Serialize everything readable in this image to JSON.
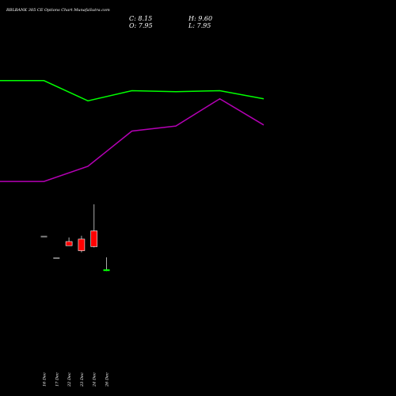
{
  "chart_data": {
    "type": "candlestick",
    "title": "RBLBANK 385 CE Options  Chart MunafaSutra.com",
    "ohlc_labels": {
      "close": "C: 8.15",
      "high": "H: 9.60",
      "open": "O: 7.95",
      "low": "L: 7.95"
    },
    "x": [
      "16 Dec",
      "17 Dec",
      "22 Dec",
      "23 Dec",
      "24 Dec",
      "26 Dec"
    ],
    "candles": [
      {
        "date": "16 Dec",
        "open": 12.2,
        "high": 12.2,
        "low": 12.2,
        "close": 12.2
      },
      {
        "date": "17 Dec",
        "open": 9.6,
        "high": 9.6,
        "low": 9.6,
        "close": 9.6
      },
      {
        "date": "22 Dec",
        "open": 11.5,
        "high": 12.0,
        "low": 11.0,
        "close": 11.0
      },
      {
        "date": "23 Dec",
        "open": 11.8,
        "high": 12.2,
        "low": 10.2,
        "close": 10.4
      },
      {
        "date": "24 Dec",
        "open": 12.8,
        "high": 16.0,
        "low": 10.8,
        "close": 10.9
      },
      {
        "date": "26 Dec",
        "open": 7.95,
        "high": 9.6,
        "low": 7.95,
        "close": 8.15
      }
    ],
    "price_range": [
      5,
      16
    ],
    "line_series": [
      {
        "color": "#00ff00",
        "values": [
          32,
          32,
          30,
          31,
          30.9,
          31,
          30.2
        ]
      },
      {
        "color": "#b400b4",
        "values": [
          22,
          22,
          23.5,
          27,
          27.5,
          30.2,
          27.6
        ]
      }
    ],
    "line_range": [
      18,
      40
    ],
    "colors": {
      "background": "#000000",
      "up": "#00ff00",
      "down": "#ff0000",
      "neutral": "#808080",
      "text": "#ffffff"
    }
  }
}
